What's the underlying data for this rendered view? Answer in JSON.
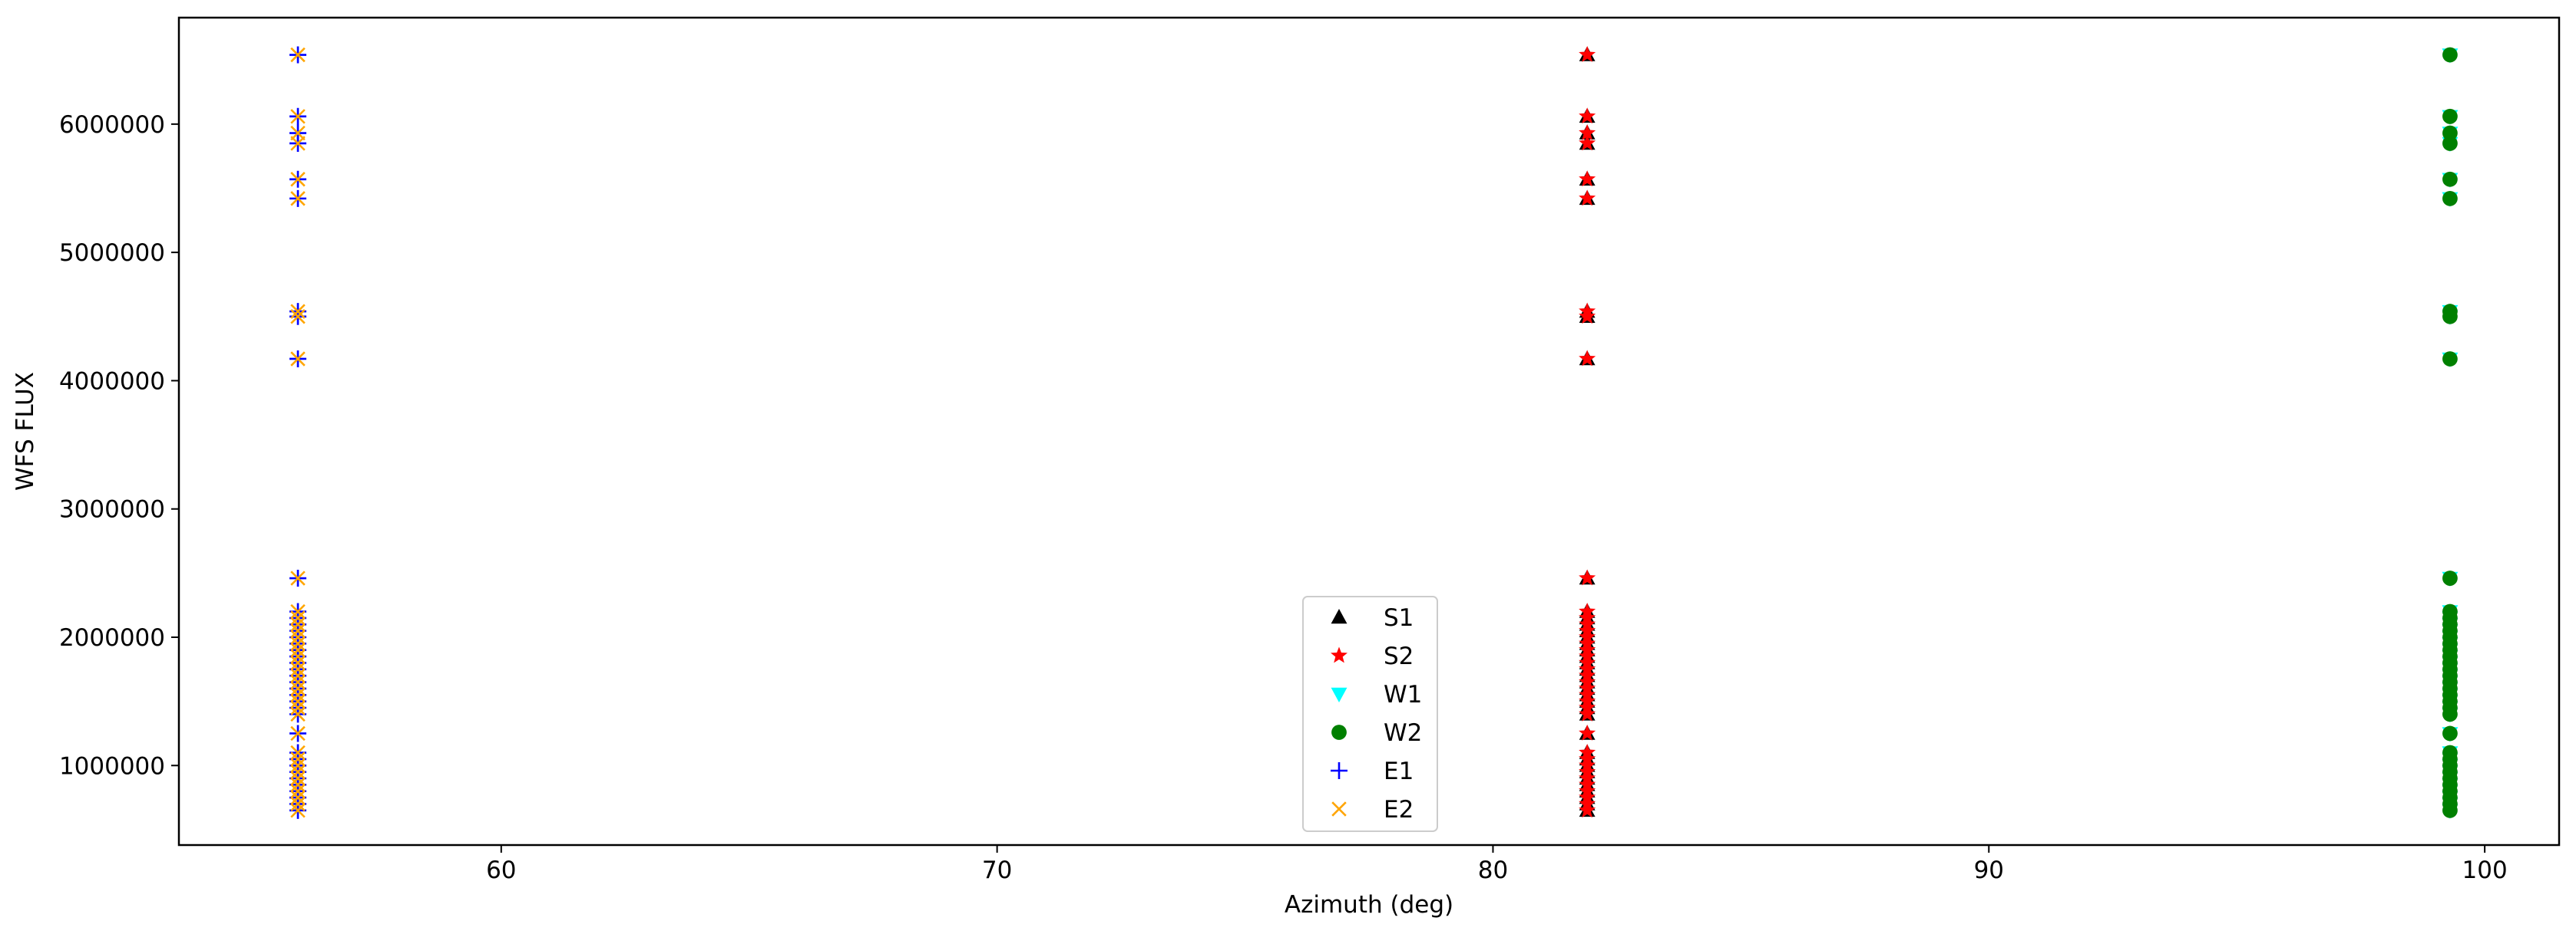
{
  "chart_data": {
    "type": "scatter",
    "xlabel": "Azimuth (deg)",
    "ylabel": "WFS FLUX",
    "xlim": [
      53.5,
      101.5
    ],
    "ylim": [
      380000,
      6830000
    ],
    "xticks": [
      60,
      70,
      80,
      90,
      100
    ],
    "yticks": [
      1000000,
      2000000,
      3000000,
      4000000,
      5000000,
      6000000
    ],
    "xtick_labels": [
      "60",
      "70",
      "80",
      "90",
      "100"
    ],
    "ytick_labels": [
      "1000000",
      "2000000",
      "3000000",
      "4000000",
      "5000000",
      "6000000"
    ],
    "grid": false,
    "legend_position": "lower center",
    "flux_values": [
      6540000,
      6060000,
      5930000,
      5850000,
      5570000,
      5420000,
      4540000,
      4500000,
      4170000,
      2460000,
      2200000,
      2150000,
      2100000,
      2050000,
      2000000,
      1950000,
      1900000,
      1850000,
      1800000,
      1750000,
      1700000,
      1650000,
      1600000,
      1550000,
      1500000,
      1450000,
      1400000,
      1250000,
      1100000,
      1050000,
      1000000,
      950000,
      900000,
      850000,
      800000,
      750000,
      700000,
      650000
    ],
    "series": [
      {
        "name": "S1",
        "marker": "triangle-up",
        "color": "#000000",
        "x": 81.9
      },
      {
        "name": "S2",
        "marker": "star",
        "color": "#ff0000",
        "x": 81.9
      },
      {
        "name": "W1",
        "marker": "triangle-down",
        "color": "#00ffff",
        "x": 99.3
      },
      {
        "name": "W2",
        "marker": "circle",
        "color": "#008000",
        "x": 99.3
      },
      {
        "name": "E1",
        "marker": "plus",
        "color": "#0000ff",
        "x": 55.9
      },
      {
        "name": "E2",
        "marker": "x",
        "color": "#ffa500",
        "x": 55.9
      }
    ]
  }
}
